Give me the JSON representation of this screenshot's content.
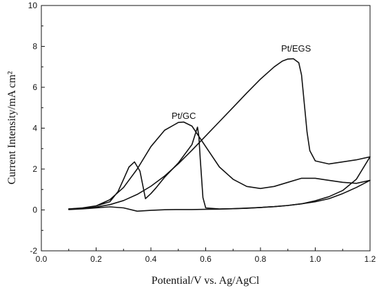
{
  "chart_data": {
    "type": "line",
    "title": "",
    "xlabel": "Potential/V vs. Ag/AgCl",
    "ylabel": "Current Intensity/mA cm²",
    "xlim": [
      0.0,
      1.2
    ],
    "ylim": [
      -2,
      10
    ],
    "xticks": [
      0.0,
      0.2,
      0.4,
      0.6,
      0.8,
      1.0,
      1.2
    ],
    "xtick_labels": [
      "0.0",
      "0.2",
      "0.4",
      "0.6",
      "0.8",
      "1.0",
      "1.2"
    ],
    "yticks": [
      -2,
      0,
      2,
      4,
      6,
      8,
      10
    ],
    "ytick_labels": [
      "-2",
      "0",
      "2",
      "4",
      "6",
      "8",
      "10"
    ],
    "grid": false,
    "legend": "none",
    "line_color": "#111111",
    "series": [
      {
        "name": "Pt/EGS",
        "label_at": [
          0.93,
          7.75
        ],
        "x": [
          0.1,
          0.15,
          0.2,
          0.25,
          0.3,
          0.35,
          0.4,
          0.45,
          0.5,
          0.55,
          0.6,
          0.65,
          0.7,
          0.75,
          0.8,
          0.85,
          0.88,
          0.9,
          0.92,
          0.94,
          0.95,
          0.96,
          0.97,
          0.98,
          1.0,
          1.05,
          1.1,
          1.15,
          1.2,
          1.15,
          1.1,
          1.05,
          1.0,
          0.95,
          0.9,
          0.85,
          0.8,
          0.75,
          0.7,
          0.65,
          0.6,
          0.55,
          0.5,
          0.45,
          0.4,
          0.35,
          0.3,
          0.25,
          0.2,
          0.15,
          0.1
        ],
        "y": [
          0.05,
          0.08,
          0.14,
          0.26,
          0.46,
          0.76,
          1.16,
          1.66,
          2.26,
          2.92,
          3.62,
          4.32,
          5.02,
          5.72,
          6.4,
          7.0,
          7.28,
          7.38,
          7.4,
          7.2,
          6.6,
          5.2,
          3.8,
          2.9,
          2.4,
          2.25,
          2.35,
          2.45,
          2.6,
          1.5,
          0.95,
          0.65,
          0.45,
          0.3,
          0.22,
          0.16,
          0.12,
          0.09,
          0.06,
          0.04,
          0.03,
          0.02,
          0.02,
          0.01,
          -0.02,
          -0.06,
          0.1,
          0.15,
          0.1,
          0.05,
          0.02
        ]
      },
      {
        "name": "Pt/GC",
        "label_at": [
          0.52,
          4.45
        ],
        "x": [
          0.1,
          0.15,
          0.2,
          0.25,
          0.3,
          0.35,
          0.4,
          0.45,
          0.5,
          0.52,
          0.55,
          0.6,
          0.65,
          0.7,
          0.75,
          0.8,
          0.85,
          0.9,
          0.95,
          1.0,
          1.05,
          1.1,
          1.15,
          1.2,
          1.15,
          1.1,
          1.05,
          1.0,
          0.95,
          0.9,
          0.85,
          0.8,
          0.75,
          0.7,
          0.65,
          0.6,
          0.59,
          0.58,
          0.575,
          0.57,
          0.55,
          0.5,
          0.45,
          0.42,
          0.4,
          0.38,
          0.36,
          0.34,
          0.32,
          0.3,
          0.28,
          0.25,
          0.2,
          0.15,
          0.1
        ],
        "y": [
          0.05,
          0.1,
          0.2,
          0.5,
          1.1,
          2.0,
          3.1,
          3.9,
          4.28,
          4.3,
          4.1,
          3.1,
          2.1,
          1.5,
          1.15,
          1.05,
          1.15,
          1.35,
          1.55,
          1.55,
          1.45,
          1.35,
          1.3,
          1.45,
          1.1,
          0.8,
          0.55,
          0.4,
          0.3,
          0.22,
          0.16,
          0.12,
          0.08,
          0.06,
          0.05,
          0.1,
          0.6,
          2.5,
          3.6,
          4.05,
          3.2,
          2.3,
          1.6,
          1.1,
          0.8,
          0.55,
          1.9,
          2.35,
          2.1,
          1.5,
          0.9,
          0.4,
          0.2,
          0.1,
          0.05
        ]
      }
    ]
  }
}
